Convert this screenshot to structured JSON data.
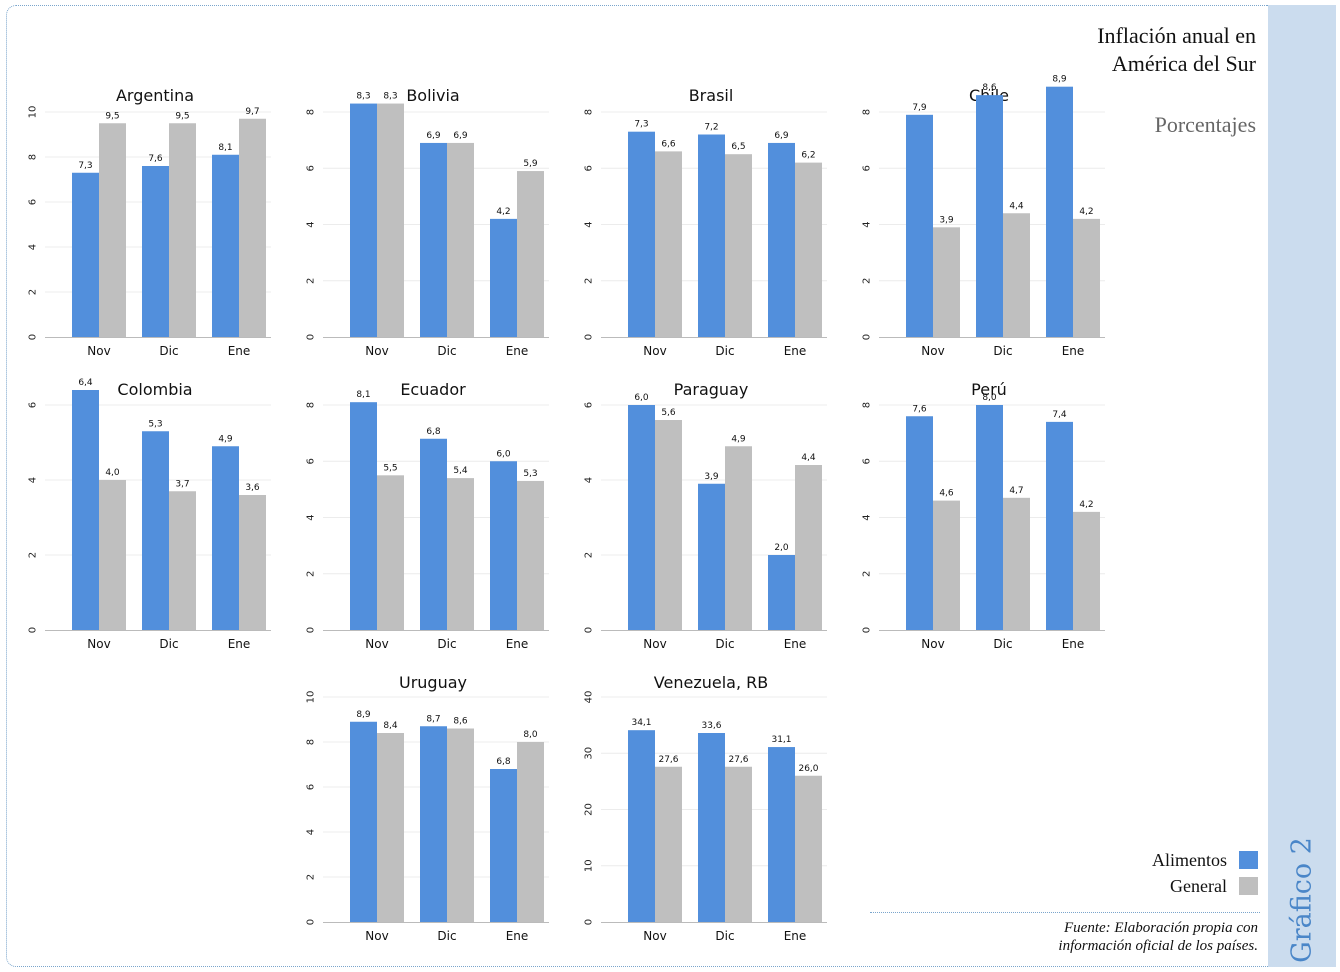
{
  "header": {
    "title_line1": "Inflación anual en",
    "title_line2": "América del Sur",
    "subtitle": "Porcentajes"
  },
  "side_label": "Gráfico 2",
  "legend": [
    {
      "label": "Alimentos",
      "color": "#528fdc"
    },
    {
      "label": "General",
      "color": "#bfbfbf"
    }
  ],
  "source": {
    "line1": "Fuente: Elaboración propia con",
    "line2": "información oficial de los países."
  },
  "chart_data": [
    {
      "type": "bar",
      "title": "Argentina",
      "categories": [
        "Nov",
        "Dic",
        "Ene"
      ],
      "ylim": [
        0,
        10
      ],
      "yticks": [
        0,
        2,
        4,
        6,
        8,
        10
      ],
      "grid": true,
      "series": [
        {
          "name": "Alimentos",
          "values": [
            7.3,
            7.6,
            8.1
          ],
          "labels": [
            "7,3",
            "7,6",
            "8,1"
          ]
        },
        {
          "name": "General",
          "values": [
            9.5,
            9.5,
            9.7
          ],
          "labels": [
            "9,5",
            "9,5",
            "9,7"
          ]
        }
      ]
    },
    {
      "type": "bar",
      "title": "Bolivia",
      "categories": [
        "Nov",
        "Dic",
        "Ene"
      ],
      "ylim": [
        0,
        8
      ],
      "yticks": [
        0,
        2,
        4,
        6,
        8
      ],
      "grid": true,
      "series": [
        {
          "name": "Alimentos",
          "values": [
            8.3,
            6.9,
            4.2
          ],
          "labels": [
            "8,3",
            "6,9",
            "4,2"
          ]
        },
        {
          "name": "General",
          "values": [
            8.3,
            6.9,
            5.9
          ],
          "labels": [
            "8,3",
            "6,9",
            "5,9"
          ]
        }
      ]
    },
    {
      "type": "bar",
      "title": "Brasil",
      "categories": [
        "Nov",
        "Dic",
        "Ene"
      ],
      "ylim": [
        0,
        8
      ],
      "yticks": [
        0,
        2,
        4,
        6,
        8
      ],
      "grid": true,
      "series": [
        {
          "name": "Alimentos",
          "values": [
            7.3,
            7.2,
            6.9
          ],
          "labels": [
            "7,3",
            "7,2",
            "6,9"
          ]
        },
        {
          "name": "General",
          "values": [
            6.6,
            6.5,
            6.2
          ],
          "labels": [
            "6,6",
            "6,5",
            "6,2"
          ]
        }
      ]
    },
    {
      "type": "bar",
      "title": "Chile",
      "categories": [
        "Nov",
        "Dic",
        "Ene"
      ],
      "ylim": [
        0,
        8
      ],
      "yticks": [
        0,
        2,
        4,
        6,
        8
      ],
      "grid": true,
      "series": [
        {
          "name": "Alimentos",
          "values": [
            7.9,
            8.6,
            8.9
          ],
          "labels": [
            "7,9",
            "8,6",
            "8,9"
          ]
        },
        {
          "name": "General",
          "values": [
            3.9,
            4.4,
            4.2
          ],
          "labels": [
            "3,9",
            "4,4",
            "4,2"
          ]
        }
      ]
    },
    {
      "type": "bar",
      "title": "Colombia",
      "categories": [
        "Nov",
        "Dic",
        "Ene"
      ],
      "ylim": [
        0,
        6
      ],
      "yticks": [
        0,
        2,
        4,
        6
      ],
      "grid": true,
      "series": [
        {
          "name": "Alimentos",
          "values": [
            6.4,
            5.3,
            4.9
          ],
          "labels": [
            "6,4",
            "5,3",
            "4,9"
          ]
        },
        {
          "name": "General",
          "values": [
            4.0,
            3.7,
            3.6
          ],
          "labels": [
            "4,0",
            "3,7",
            "3,6"
          ]
        }
      ]
    },
    {
      "type": "bar",
      "title": "Ecuador",
      "categories": [
        "Nov",
        "Dic",
        "Ene"
      ],
      "ylim": [
        0,
        8
      ],
      "yticks": [
        0,
        2,
        4,
        6,
        8
      ],
      "grid": true,
      "series": [
        {
          "name": "Alimentos",
          "values": [
            8.1,
            6.8,
            6.0
          ],
          "labels": [
            "8,1",
            "6,8",
            "6,0"
          ]
        },
        {
          "name": "General",
          "values": [
            5.5,
            5.4,
            5.3
          ],
          "labels": [
            "5,5",
            "5,4",
            "5,3"
          ]
        }
      ]
    },
    {
      "type": "bar",
      "title": "Paraguay",
      "categories": [
        "Nov",
        "Dic",
        "Ene"
      ],
      "ylim": [
        0,
        6
      ],
      "yticks": [
        0,
        2,
        4,
        6
      ],
      "grid": true,
      "series": [
        {
          "name": "Alimentos",
          "values": [
            6.0,
            3.9,
            2.0
          ],
          "labels": [
            "6,0",
            "3,9",
            "2,0"
          ]
        },
        {
          "name": "General",
          "values": [
            5.6,
            4.9,
            4.4
          ],
          "labels": [
            "5,6",
            "4,9",
            "4,4"
          ]
        }
      ]
    },
    {
      "type": "bar",
      "title": "Perú",
      "categories": [
        "Nov",
        "Dic",
        "Ene"
      ],
      "ylim": [
        0,
        8
      ],
      "yticks": [
        0,
        2,
        4,
        6,
        8
      ],
      "grid": true,
      "series": [
        {
          "name": "Alimentos",
          "values": [
            7.6,
            8.0,
            7.4
          ],
          "labels": [
            "7,6",
            "8,0",
            "7,4"
          ]
        },
        {
          "name": "General",
          "values": [
            4.6,
            4.7,
            4.2
          ],
          "labels": [
            "4,6",
            "4,7",
            "4,2"
          ]
        }
      ]
    },
    {
      "type": "bar",
      "title": "Uruguay",
      "categories": [
        "Nov",
        "Dic",
        "Ene"
      ],
      "ylim": [
        0,
        10
      ],
      "yticks": [
        0,
        2,
        4,
        6,
        8,
        10
      ],
      "grid": true,
      "series": [
        {
          "name": "Alimentos",
          "values": [
            8.9,
            8.7,
            6.8
          ],
          "labels": [
            "8,9",
            "8,7",
            "6,8"
          ]
        },
        {
          "name": "General",
          "values": [
            8.4,
            8.6,
            8.0
          ],
          "labels": [
            "8,4",
            "8,6",
            "8,0"
          ]
        }
      ]
    },
    {
      "type": "bar",
      "title": "Venezuela, RB",
      "categories": [
        "Nov",
        "Dic",
        "Ene"
      ],
      "ylim": [
        0,
        40
      ],
      "yticks": [
        0,
        10,
        20,
        30,
        40
      ],
      "grid": true,
      "series": [
        {
          "name": "Alimentos",
          "values": [
            34.1,
            33.6,
            31.1
          ],
          "labels": [
            "34,1",
            "33,6",
            "31,1"
          ]
        },
        {
          "name": "General",
          "values": [
            27.6,
            27.6,
            26.0
          ],
          "labels": [
            "27,6",
            "27,6",
            "26,0"
          ]
        }
      ]
    }
  ]
}
